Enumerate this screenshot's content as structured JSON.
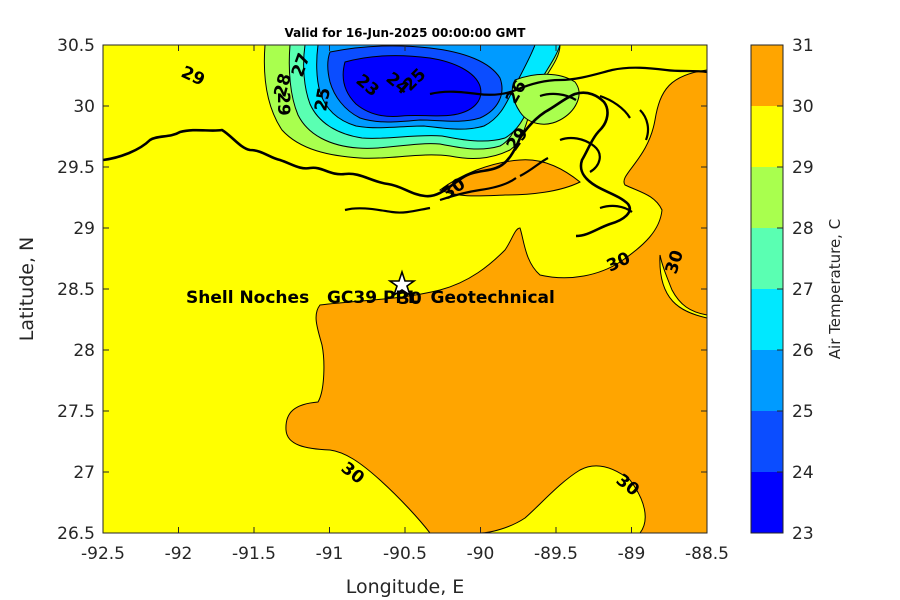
{
  "title": "Valid for 16-Jun-2025 00:00:00 GMT",
  "x_axis": {
    "label": "Longitude, E",
    "ticks": [
      "-92.5",
      "-92",
      "-91.5",
      "-91",
      "-90.5",
      "-90",
      "-89.5",
      "-89",
      "-88.5"
    ]
  },
  "y_axis": {
    "label": "Latitude, N",
    "ticks": [
      "26.5",
      "27",
      "27.5",
      "28",
      "28.5",
      "29",
      "29.5",
      "30",
      "30.5"
    ]
  },
  "colorbar": {
    "label": "Air Temperature, C",
    "levels": [
      "23",
      "24",
      "25",
      "26",
      "27",
      "28",
      "29",
      "30",
      "31"
    ],
    "colors": [
      "#0000ff",
      "#0b4dff",
      "#009bff",
      "#00e8ff",
      "#5affb2",
      "#a9ff4e",
      "#ffff00",
      "#ffa500",
      "#ff5a00"
    ]
  },
  "site": {
    "label": "Shell Noches   GC39 PPL  Geotechnical",
    "marker": "star-marker"
  },
  "contour_labels": [
    "29",
    "28",
    "27",
    "25",
    "23",
    "24",
    "25",
    "26",
    "29",
    "30",
    "30",
    "30",
    "30",
    "30",
    "30",
    "29"
  ],
  "colors": {
    "land_edge": "#000000",
    "warm_water": "#ffa500",
    "base_field": "#ffff00"
  }
}
